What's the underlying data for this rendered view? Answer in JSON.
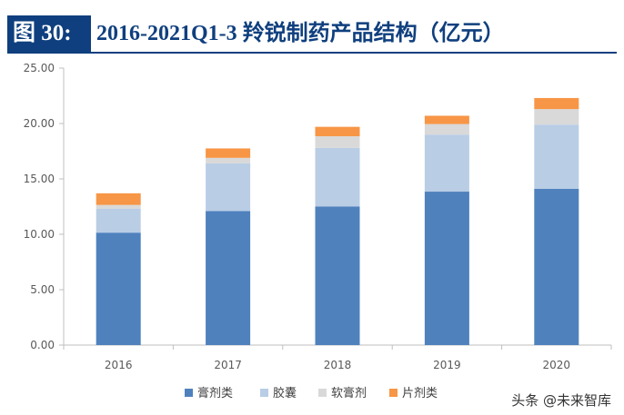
{
  "header": {
    "figure_label": "图 30:",
    "title": "2016-2021Q1-3 羚锐制药产品结构（亿元）"
  },
  "colors": {
    "header_bg": "#0f3f7e",
    "series": [
      "#4f81bd",
      "#b9cde5",
      "#d9d9d9",
      "#f79646"
    ]
  },
  "chart_data": {
    "type": "bar",
    "stacked": true,
    "categories": [
      "2016",
      "2017",
      "2018",
      "2019",
      "2020"
    ],
    "series": [
      {
        "name": "膏剂类",
        "values": [
          10.15,
          12.1,
          12.5,
          13.85,
          14.1
        ]
      },
      {
        "name": "胶囊",
        "values": [
          2.15,
          4.3,
          5.3,
          5.15,
          5.8
        ]
      },
      {
        "name": "软膏剂",
        "values": [
          0.35,
          0.5,
          1.05,
          0.95,
          1.4
        ]
      },
      {
        "name": "片剂类",
        "values": [
          1.05,
          0.85,
          0.85,
          0.75,
          1.0
        ]
      }
    ],
    "y_ticks": [
      "0.00",
      "5.00",
      "10.00",
      "15.00",
      "20.00",
      "25.00"
    ],
    "ylim": [
      0,
      25
    ],
    "grid": false,
    "legend_position": "bottom"
  },
  "watermark": "头条 @未来智库"
}
